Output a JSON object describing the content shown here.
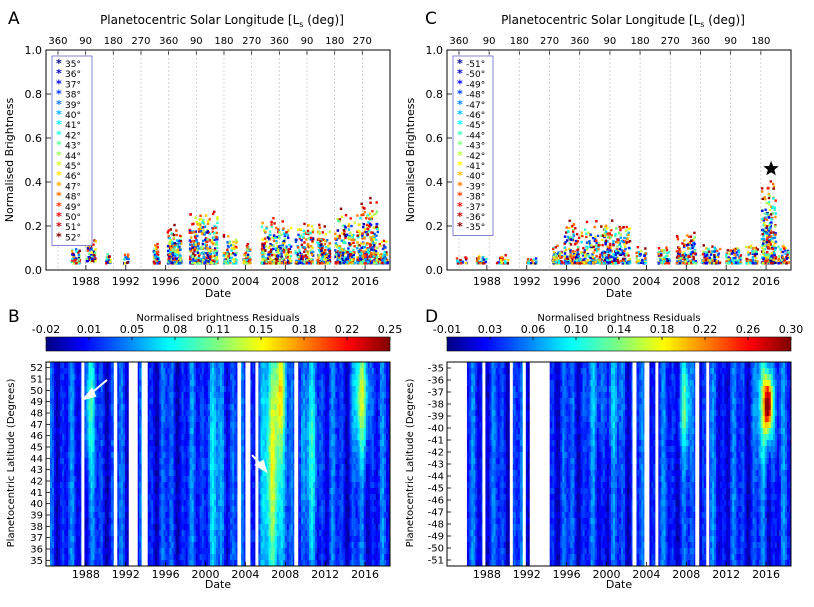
{
  "chart_data": [
    {
      "id": "A",
      "type": "scatter",
      "panel_label": "A",
      "top_axis_title": "Planetocentric Solar Longitude [L",
      "top_axis_sub": "s",
      "top_axis_unit": " (deg)]",
      "top_ticks": [
        "360",
        "90",
        "180",
        "270",
        "360",
        "90",
        "180",
        "270",
        "360",
        "90",
        "180",
        "270"
      ],
      "xlabel": "Date",
      "ylabel": "Normalised Brightness",
      "xlim": [
        1984,
        2018.5
      ],
      "ylim": [
        0,
        1.0
      ],
      "yticks": [
        "0.0",
        "0.2",
        "0.4",
        "0.6",
        "0.8",
        "1.0"
      ],
      "xticks": [
        "1988",
        "1992",
        "1996",
        "2000",
        "2004",
        "2008",
        "2012",
        "2016"
      ],
      "legend_position": "top-left",
      "legend": [
        "35°",
        "36°",
        "37°",
        "38°",
        "39°",
        "40°",
        "41°",
        "42°",
        "43°",
        "44°",
        "45°",
        "46°",
        "47°",
        "48°",
        "49°",
        "50°",
        "51°",
        "52°"
      ],
      "series_note": "one series per latitude; data clusters by observing apparition"
    },
    {
      "id": "C",
      "type": "scatter",
      "panel_label": "C",
      "top_axis_title": "Planetocentric Solar Longitude [L",
      "top_axis_sub": "s",
      "top_axis_unit": " (deg)]",
      "top_ticks": [
        "360",
        "90",
        "180",
        "270",
        "360",
        "90",
        "180",
        "270",
        "360",
        "90",
        "180"
      ],
      "xlabel": "Date",
      "ylabel": "Normalised Brightness",
      "xlim": [
        1984,
        2018.5
      ],
      "ylim": [
        0,
        1.0
      ],
      "yticks": [
        "0.0",
        "0.2",
        "0.4",
        "0.6",
        "0.8",
        "1.0"
      ],
      "xticks": [
        "1988",
        "1992",
        "1996",
        "2000",
        "2004",
        "2008",
        "2012",
        "2016"
      ],
      "legend_position": "top-left",
      "legend": [
        "-51°",
        "-50°",
        "-49°",
        "-48°",
        "-47°",
        "-46°",
        "-45°",
        "-44°",
        "-43°",
        "-42°",
        "-41°",
        "-40°",
        "-39°",
        "-38°",
        "-37°",
        "-36°",
        "-35°"
      ],
      "annotation": "star marker near 2016.5 at 0.46"
    },
    {
      "id": "B",
      "type": "heatmap",
      "panel_label": "B",
      "colorbar_title": "Normalised brightness Residuals",
      "colorbar_ticks": [
        "-0.02",
        "0.01",
        "0.05",
        "0.08",
        "0.11",
        "0.15",
        "0.18",
        "0.22",
        "0.25"
      ],
      "xlabel": "Date",
      "ylabel": "Planetocentric Latitude (Degrees)",
      "xlim": [
        1984,
        2018.5
      ],
      "yticks": [
        "52",
        "51",
        "50",
        "49",
        "48",
        "47",
        "46",
        "45",
        "44",
        "43",
        "42",
        "41",
        "40",
        "39",
        "38",
        "37",
        "36",
        "35"
      ],
      "xticks": [
        "1988",
        "1992",
        "1996",
        "2000",
        "2004",
        "2008",
        "2012",
        "2016"
      ],
      "arrows": "two white arrows marking features near 1988 and 2006"
    },
    {
      "id": "D",
      "type": "heatmap",
      "panel_label": "D",
      "colorbar_title": "Normalised brightness Residuals",
      "colorbar_ticks": [
        "-0.01",
        "0.03",
        "0.06",
        "0.10",
        "0.14",
        "0.18",
        "0.22",
        "0.26",
        "0.30"
      ],
      "xlabel": "Date",
      "ylabel": "Planetocentric Latitude (Degrees)",
      "xlim": [
        1984,
        2018.5
      ],
      "yticks": [
        "-35",
        "-36",
        "-37",
        "-38",
        "-39",
        "-40",
        "-41",
        "-42",
        "-43",
        "-44",
        "-45",
        "-46",
        "-47",
        "-48",
        "-49",
        "-50",
        "-51"
      ],
      "xticks": [
        "1988",
        "1992",
        "1996",
        "2000",
        "2004",
        "2008",
        "2012",
        "2016"
      ]
    }
  ],
  "colors": {
    "jet": [
      "#00007f",
      "#0000ff",
      "#007fff",
      "#00ffff",
      "#7fff7f",
      "#ffff00",
      "#ff7f00",
      "#ff0000",
      "#7f0000"
    ]
  }
}
